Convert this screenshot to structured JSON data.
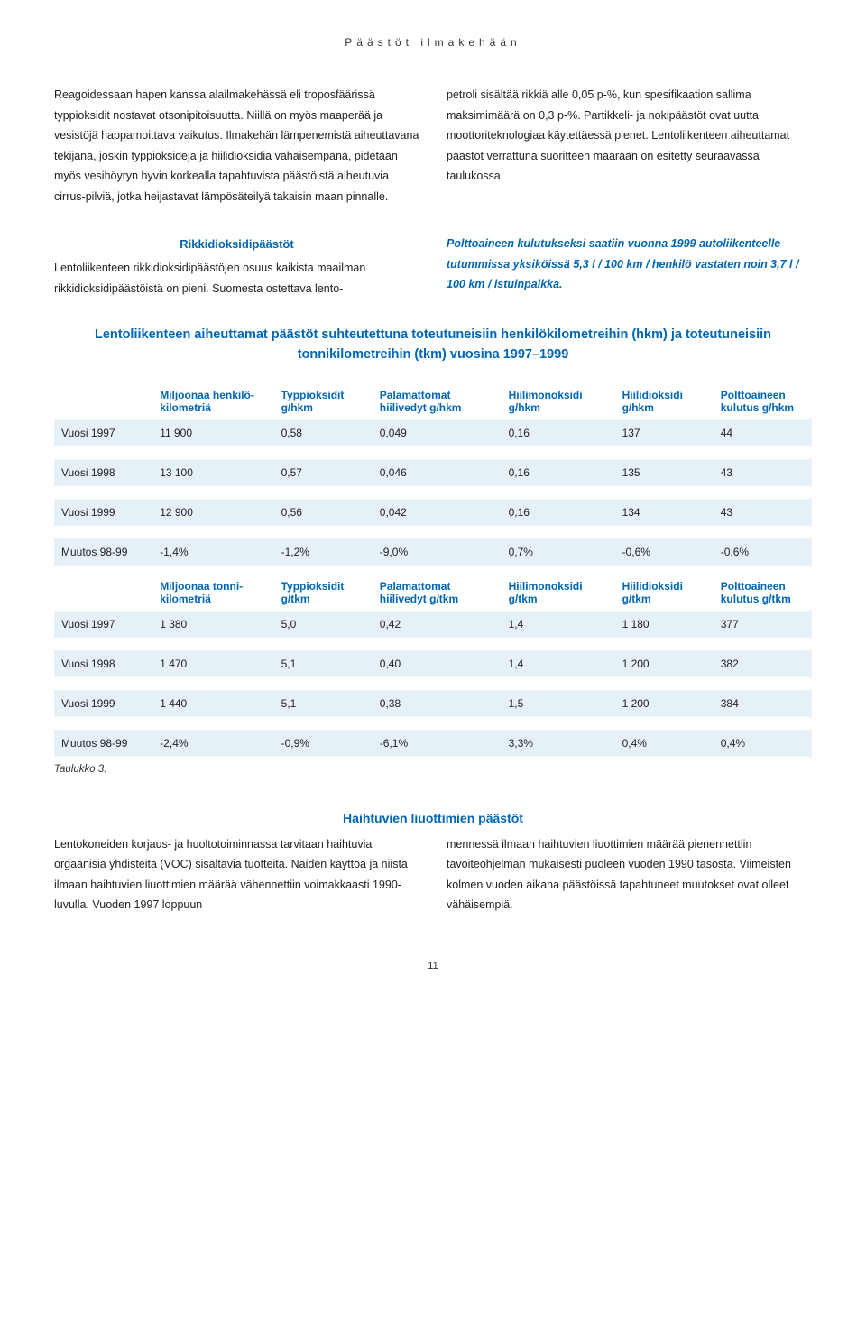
{
  "section_header": "Päästöt ilmakehään",
  "para_top_left": "Reagoidessaan hapen kanssa alailmakehässä eli troposfäärissä typpioksidit nostavat otsonipitoisuutta. Niillä on myös maaperää ja vesistöjä happamoittava vaikutus. Ilmakehän lämpenemistä aiheuttavana tekijänä, joskin typpioksideja ja hiilidioksidia vähäisempänä, pidetään myös vesihöyryn hyvin korkealla tapahtuvista päästöistä aiheutuvia cirrus-pilviä, jotka heijastavat lämpösäteilyä takaisin maan pinnalle.",
  "para_top_right": "petroli sisältää rikkiä alle 0,05 p-%, kun spesifikaation sallima maksimimäärä on 0,3 p-%. Partikkeli- ja nokipäästöt ovat uutta moottoriteknologiaa käytettäessä pienet.\nLentoliikenteen aiheuttamat päästöt verrattuna suoritteen määrään on esitetty seuraavassa taulukossa.",
  "sub_heading_left": "Rikkidioksidipäästöt",
  "para_mid_left": "Lentoliikenteen rikkidioksidipäästöjen osuus kaikista maailman rikkidioksidipäästöistä on pieni. Suomesta ostettava lento-",
  "para_mid_right": "Polttoaineen kulutukseksi saatiin vuonna 1999 autoliikenteelle tutummissa yksiköissä 5,3 l / 100 km / henkilö vastaten noin 3,7 l / 100 km / istuinpaikka.",
  "table_title": "Lentoliikenteen aiheuttamat päästöt suhteutettuna toteutuneisiin henkilökilometreihin (hkm) ja toteutuneisiin tonnikilometreihin (tkm) vuosina 1997–1999",
  "headers1": [
    "",
    "Miljoonaa henkilö-kilometriä",
    "Typpioksidit g/hkm",
    "Palamattomat hiilivedyt g/hkm",
    "Hiilimonoksidi g/hkm",
    "Hiilidioksidi g/hkm",
    "Polttoaineen kulutus g/hkm"
  ],
  "rows1": [
    [
      "Vuosi 1997",
      "11 900",
      "0,58",
      "0,049",
      "0,16",
      "137",
      "44"
    ],
    [
      "Vuosi 1998",
      "13 100",
      "0,57",
      "0,046",
      "0,16",
      "135",
      "43"
    ],
    [
      "Vuosi 1999",
      "12 900",
      "0,56",
      "0,042",
      "0,16",
      "134",
      "43"
    ],
    [
      "Muutos 98-99",
      "-1,4%",
      "-1,2%",
      "-9,0%",
      "0,7%",
      "-0,6%",
      "-0,6%"
    ]
  ],
  "headers2": [
    "",
    "Miljoonaa tonni-kilometriä",
    "Typpioksidit g/tkm",
    "Palamattomat hiilivedyt g/tkm",
    "Hiilimonoksidi g/tkm",
    "Hiilidioksidi g/tkm",
    "Polttoaineen kulutus g/tkm"
  ],
  "rows2": [
    [
      "Vuosi 1997",
      "1 380",
      "5,0",
      "0,42",
      "1,4",
      "1 180",
      "377"
    ],
    [
      "Vuosi 1998",
      "1 470",
      "5,1",
      "0,40",
      "1,4",
      "1 200",
      "382"
    ],
    [
      "Vuosi 1999",
      "1 440",
      "5,1",
      "0,38",
      "1,5",
      "1 200",
      "384"
    ],
    [
      "Muutos 98-99",
      "-2,4%",
      "-0,9%",
      "-6,1%",
      "3,3%",
      "0,4%",
      "0,4%"
    ]
  ],
  "table_caption": "Taulukko 3.",
  "bottom_heading": "Haihtuvien liuottimien päästöt",
  "para_bottom_left": "Lentokoneiden korjaus- ja huoltotoiminnassa tarvitaan haihtuvia orgaanisia yhdisteitä (VOC) sisältäviä tuotteita. Näiden käyttöä ja niistä ilmaan haihtuvien liuottimien määrää vähennettiin voimakkaasti 1990-luvulla. Vuoden 1997 loppuun",
  "para_bottom_right": "mennessä ilmaan haihtuvien liuottimien määrää pienennettiin tavoiteohjelman mukaisesti puoleen vuoden 1990 tasosta. Viimeisten kolmen vuoden aikana päästöissä tapahtuneet muutokset ovat olleet vähäisempiä.",
  "page_number": "11",
  "colors": {
    "blue": "#0066b3",
    "row_bg": "#e6f0f7"
  },
  "col_widths": [
    "13%",
    "16%",
    "13%",
    "17%",
    "15%",
    "13%",
    "13%"
  ]
}
